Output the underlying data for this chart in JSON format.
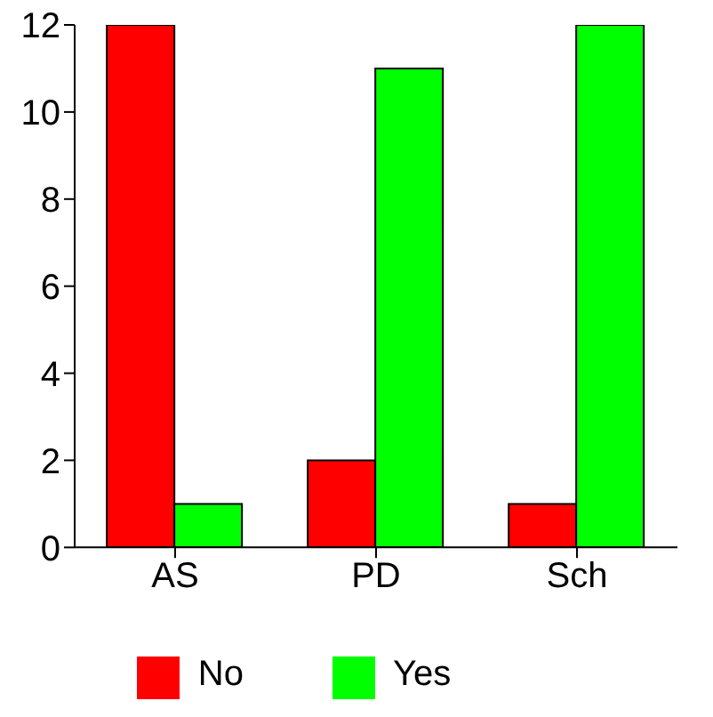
{
  "chart_data": {
    "type": "bar",
    "categories": [
      "AS",
      "PD",
      "Sch"
    ],
    "series": [
      {
        "name": "No",
        "color": "#ff0000",
        "values": [
          12,
          2,
          1
        ]
      },
      {
        "name": "Yes",
        "color": "#00ff00",
        "values": [
          1,
          11,
          12
        ]
      }
    ],
    "ylim": [
      0,
      12
    ],
    "yticks": [
      0,
      2,
      4,
      6,
      8,
      10,
      12
    ],
    "grid": false,
    "legend": "bottom"
  }
}
